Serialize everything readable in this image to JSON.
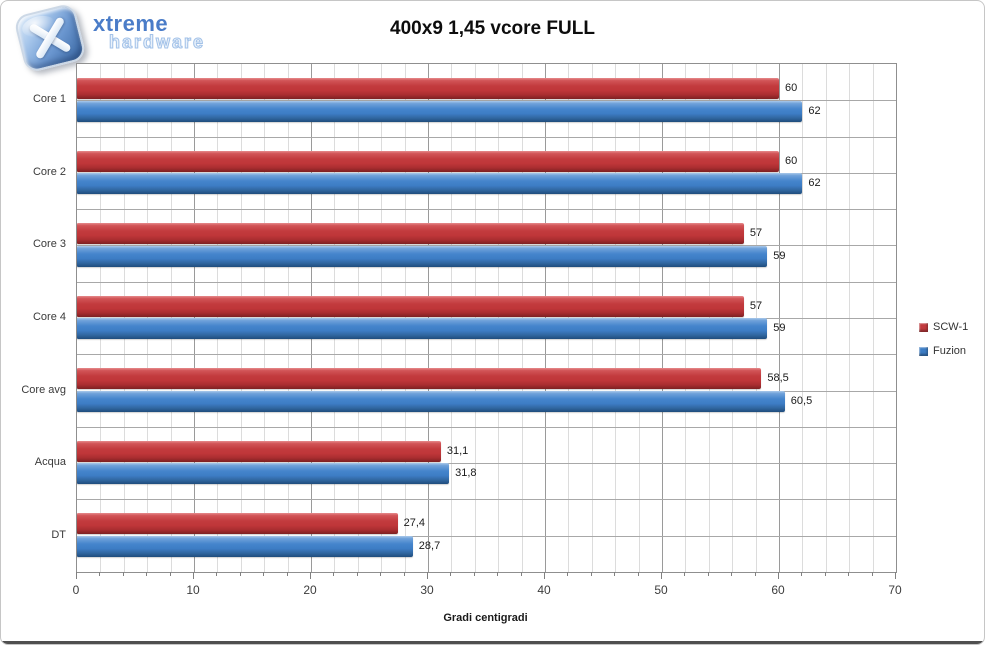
{
  "logo": {
    "line1": "xtreme",
    "line2": "hardware"
  },
  "chart_data": {
    "type": "bar",
    "orientation": "horizontal",
    "title": "400x9 1,45 vcore FULL",
    "categories": [
      "Core 1",
      "Core 2",
      "Core 3",
      "Core 4",
      "Core avg",
      "Acqua",
      "DT"
    ],
    "series": [
      {
        "name": "SCW-1",
        "color": "#C23B3E",
        "values": [
          60,
          60,
          57,
          57,
          58.5,
          31.1,
          27.4
        ],
        "value_labels": [
          "60",
          "60",
          "57",
          "57",
          "58,5",
          "31,1",
          "27,4"
        ]
      },
      {
        "name": "Fuzion",
        "color": "#3D7DC5",
        "values": [
          62,
          62,
          59,
          59,
          60.5,
          31.8,
          28.7
        ],
        "value_labels": [
          "62",
          "62",
          "59",
          "59",
          "60,5",
          "31,8",
          "28,7"
        ]
      }
    ],
    "xlabel": "Gradi centigradi",
    "xlim": [
      0,
      70
    ],
    "xticks": [
      0,
      10,
      20,
      30,
      40,
      50,
      60,
      70
    ],
    "minor_step": 2,
    "grid": true,
    "legend_position": "right",
    "grid_minor_color": "#DCDCDC",
    "grid_major_color": "#9A9A9A"
  }
}
